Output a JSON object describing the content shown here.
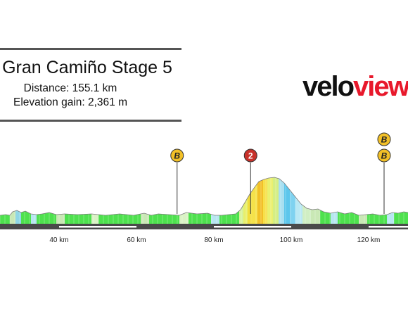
{
  "race": {
    "title": "Gran Camiño Stage 5",
    "distance": "Distance: 155.1 km",
    "elevation_gain": "Elevation gain: 2,361 m"
  },
  "logo": {
    "part_dark": "velo",
    "part_red": "view"
  },
  "markers": [
    {
      "label": "B",
      "type": "bonus-sprint",
      "km": 70.5
    },
    {
      "label": "2",
      "type": "category-2-climb",
      "km": 89.5
    },
    {
      "label": "B",
      "type": "bonus-sprint",
      "km": 124
    }
  ],
  "partial_marker_label": "B",
  "axis": {
    "ticks": [
      {
        "km": 40,
        "label": "40 km"
      },
      {
        "km": 60,
        "label": "60 km"
      },
      {
        "km": 80,
        "label": "80 km"
      },
      {
        "km": 100,
        "label": "100 km"
      },
      {
        "km": 120,
        "label": "120 km"
      }
    ]
  },
  "colors": {
    "bonus_marker": "#f2c027",
    "climb_marker": "#c8312a",
    "flat": "#4ee14e",
    "logo_red": "#e8192c",
    "base": "#4a4a4a"
  }
}
